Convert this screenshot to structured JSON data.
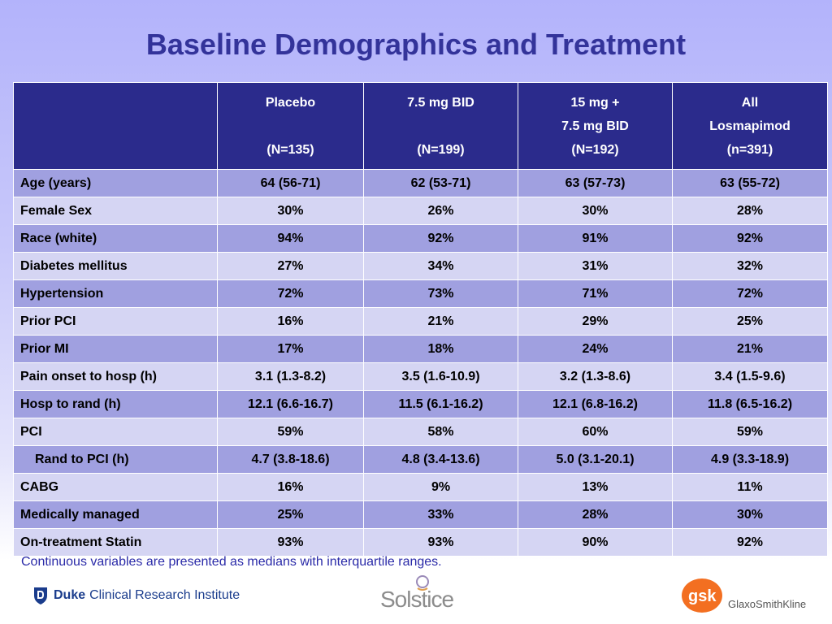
{
  "slide": {
    "title": "Baseline Demographics and Treatment",
    "footnote": "Continuous variables are presented as medians with interquartile ranges."
  },
  "table": {
    "headers": [
      {
        "line1": "Placebo",
        "line2": "",
        "line3": "(N=135)"
      },
      {
        "line1": "7.5 mg BID",
        "line2": "",
        "line3": "(N=199)"
      },
      {
        "line1": "15 mg +",
        "line2": "7.5 mg BID",
        "line3": "(N=192)"
      },
      {
        "line1": "All",
        "line2": "Losmapimod",
        "line3": "(n=391)"
      }
    ],
    "rows": [
      {
        "label": "Age (years)",
        "values": [
          "64 (56-71)",
          "62 (53-71)",
          "63 (57-73)",
          "63 (55-72)"
        ]
      },
      {
        "label": "Female Sex",
        "values": [
          "30%",
          "26%",
          "30%",
          "28%"
        ]
      },
      {
        "label": "Race (white)",
        "values": [
          "94%",
          "92%",
          "91%",
          "92%"
        ]
      },
      {
        "label": "Diabetes mellitus",
        "values": [
          "27%",
          "34%",
          "31%",
          "32%"
        ]
      },
      {
        "label": "Hypertension",
        "values": [
          "72%",
          "73%",
          "71%",
          "72%"
        ]
      },
      {
        "label": "Prior PCI",
        "values": [
          "16%",
          "21%",
          "29%",
          "25%"
        ]
      },
      {
        "label": "Prior MI",
        "values": [
          "17%",
          "18%",
          "24%",
          "21%"
        ]
      },
      {
        "label": "Pain onset to hosp (h)",
        "values": [
          "3.1 (1.3-8.2)",
          "3.5 (1.6-10.9)",
          "3.2 (1.3-8.6)",
          "3.4 (1.5-9.6)"
        ]
      },
      {
        "label": "Hosp to rand (h)",
        "values": [
          "12.1 (6.6-16.7)",
          "11.5 (6.1-16.2)",
          "12.1 (6.8-16.2)",
          "11.8 (6.5-16.2)"
        ]
      },
      {
        "label": "PCI",
        "values": [
          "59%",
          "58%",
          "60%",
          "59%"
        ]
      },
      {
        "label": "Rand to PCI (h)",
        "values": [
          "4.7 (3.8-18.6)",
          "4.8 (3.4-13.6)",
          "5.0 (3.1-20.1)",
          "4.9 (3.3-18.9)"
        ]
      },
      {
        "label": "CABG",
        "values": [
          "16%",
          "9%",
          "13%",
          "11%"
        ]
      },
      {
        "label": "Medically managed",
        "values": [
          "25%",
          "33%",
          "28%",
          "30%"
        ]
      },
      {
        "label": "On-treatment Statin",
        "values": [
          "93%",
          "93%",
          "90%",
          "92%"
        ]
      }
    ]
  },
  "logos": {
    "duke_name": "Duke",
    "duke_sub": "Clinical Research Institute",
    "solstice": "Solstice",
    "gsk_name": "GlaxoSmithKline",
    "gsk_badge": "gsk"
  },
  "colors": {
    "title": "#33339a",
    "header_bg": "#2b2b8c",
    "row_dark": "#a0a0e0",
    "row_light": "#d5d5f3",
    "footnote": "#2a2aa8",
    "gsk_orange": "#f36f21"
  }
}
